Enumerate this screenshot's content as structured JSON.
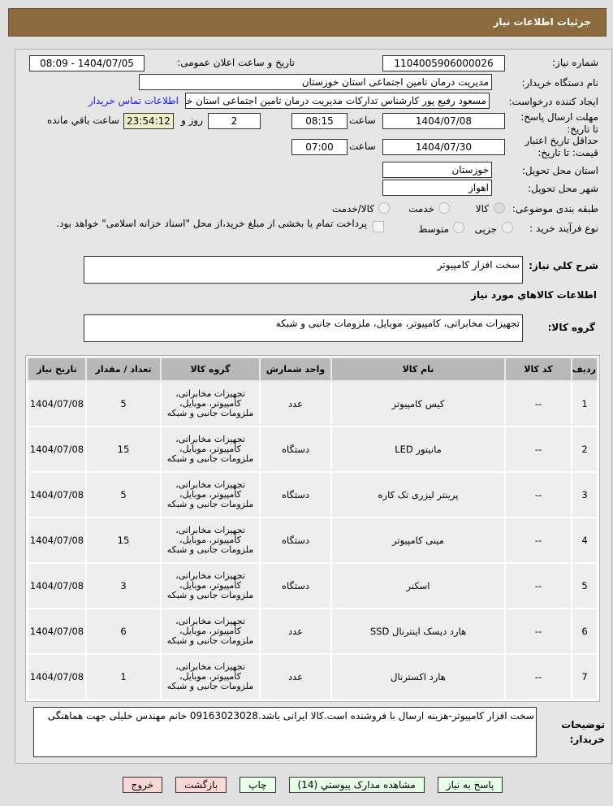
{
  "header": {
    "title": "جزئیات اطلاعات نیاز"
  },
  "form": {
    "need_number_label": "شماره نیاز:",
    "need_number": "1104005906000026",
    "announce_label": "تاریخ و ساعت اعلان عمومی:",
    "announce_value": "1404/07/05 - 08:09",
    "buyer_org_label": "نام دستگاه خریدار:",
    "buyer_org": "مدیریت درمان تامین اجتماعی استان خوزستان",
    "creator_label": "ایجاد کننده درخواست:",
    "creator": "مسعود رفیع پور کارشناس تدارکات مدیریت درمان تامین اجتماعی استان خوزستان",
    "contact_link": "اطلاعات تماس خریدار",
    "deadline_label": "مهلت ارسال پاسخ: تا تاریخ:",
    "deadline_date": "1404/07/08",
    "time_label": "ساعت",
    "deadline_time": "08:15",
    "days": "2",
    "days_label": "روز و",
    "remaining": "23:54:12",
    "remaining_label": "ساعت باقي مانده",
    "validity_label": "حداقل تاریخ اعتبار قیمت: تا تاریخ:",
    "validity_date": "1404/07/30",
    "validity_time": "07:00",
    "province_label": "استان محل تحویل:",
    "province": "خوزستان",
    "city_label": "شهر محل تحویل:",
    "city": "اهواز",
    "category_label": "طبقه بندی موضوعی:",
    "category_options": [
      "کالا",
      "خدمت",
      "کالا/خدمت"
    ],
    "category_selected": "کالا",
    "process_label": "نوع فرآیند خرید :",
    "process_options": [
      "جزیی",
      "متوسط"
    ],
    "payment_note": "پرداخت تمام یا بخشی از مبلغ خرید،از محل \"اسناد خزانه اسلامی\" خواهد بود.",
    "summary_label": "شرح کلي نیاز:",
    "summary": "سخت افزار کامپیوتر",
    "goods_info_title": "اطلاعات کالاهاي مورد نیاز",
    "goods_group_label": "گروه کالا:",
    "goods_group": "تجهیزات مخابراتی، کامپیوتر، موبایل، ملزومات جانبی و شبکه"
  },
  "table": {
    "headers": [
      "ردیف",
      "کد کالا",
      "نام کالا",
      "واحد شمارش",
      "گروه کالا",
      "تعداد / مقدار",
      "تاریخ نیاز"
    ],
    "rows": [
      [
        "1",
        "--",
        "کیس کامپیوتر",
        "عدد",
        "تجهیزات مخابراتی، کامپیوتر، موبایل، ملزومات جانبی و شبکه",
        "5",
        "1404/07/08"
      ],
      [
        "2",
        "--",
        "مانیتور LED",
        "دستگاه",
        "تجهیزات مخابراتی، کامپیوتر، موبایل، ملزومات جانبی و شبکه",
        "15",
        "1404/07/08"
      ],
      [
        "3",
        "--",
        "پرینتر لیزری تک کاره",
        "دستگاه",
        "تجهیزات مخابراتی، کامپیوتر، موبایل، ملزومات جانبی و شبکه",
        "5",
        "1404/07/08"
      ],
      [
        "4",
        "--",
        "مینی کامپیوتر",
        "دستگاه",
        "تجهیزات مخابراتی، کامپیوتر، موبایل، ملزومات جانبی و شبکه",
        "15",
        "1404/07/08"
      ],
      [
        "5",
        "--",
        "اسکنر",
        "دستگاه",
        "تجهیزات مخابراتی، کامپیوتر، موبایل، ملزومات جانبی و شبکه",
        "3",
        "1404/07/08"
      ],
      [
        "6",
        "--",
        "هارد دیسک اینترنال SSD",
        "عدد",
        "تجهیزات مخابراتی، کامپیوتر، موبایل، ملزومات جانبی و شبکه",
        "6",
        "1404/07/08"
      ],
      [
        "7",
        "--",
        "هارد اکسترنال",
        "عدد",
        "تجهیزات مخابراتی، کامپیوتر، موبایل، ملزومات جانبی و شبکه",
        "1",
        "1404/07/08"
      ]
    ]
  },
  "notes": {
    "label": "توضیحات خریدار:",
    "text": "سخت افزار کامپیوتر-هزینه ارسال با فروشنده است.کالا ایرانی باشد.09163023028 خانم مهندس خلیلی جهت هماهنگی"
  },
  "buttons": {
    "reply": "پاسخ به نیاز",
    "attachments": "مشاهده مدارک پیوستي (14)",
    "print": "چاپ",
    "back": "بازگشت",
    "exit": "خروج"
  },
  "colors": {
    "header": "#8b6a3e",
    "link": "#1a1aff",
    "timer_bg": "#f0f0c8"
  }
}
